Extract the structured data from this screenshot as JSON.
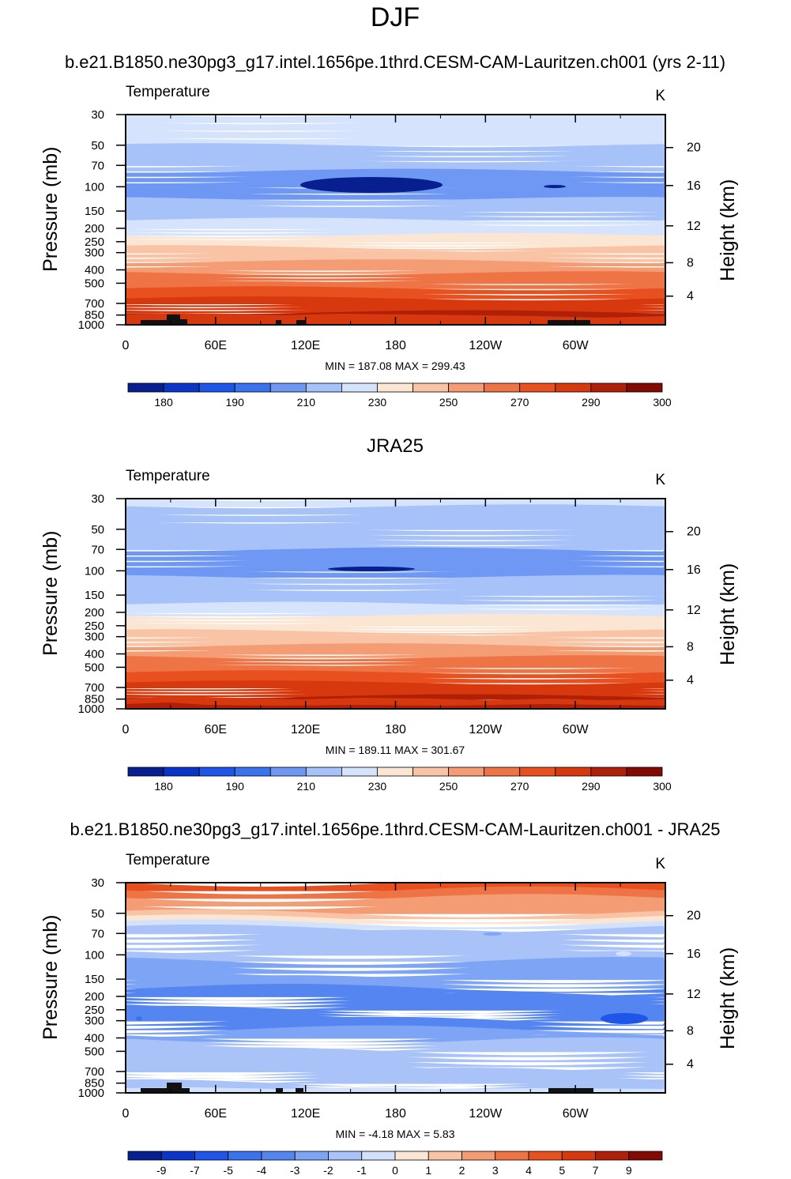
{
  "figure_title": "DJF",
  "panel_titles": [
    "b.e21.B1850.ne30pg3_g17.intel.1656pe.1thrd.CESM-CAM-Lauritzen.ch001 (yrs 2-11)",
    "JRA25",
    "b.e21.B1850.ne30pg3_g17.intel.1656pe.1thrd.CESM-CAM-Lauritzen.ch001 - JRA25"
  ],
  "common": {
    "variable": "Temperature",
    "units": "K",
    "y_label_left": "Pressure (mb)",
    "y_label_right": "Height (km)"
  },
  "colors": {
    "abs_scale": [
      "#08208f",
      "#0a35c8",
      "#1f55e8",
      "#3a73ee",
      "#6f98f4",
      "#a7c2f9",
      "#d5e4fc",
      "#fbe6d4",
      "#f8c4a5",
      "#f49d75",
      "#ee7446",
      "#e9501f",
      "#d8380d",
      "#b02008",
      "#820a05"
    ],
    "diff_scale": [
      "#08208f",
      "#0a35c8",
      "#1f55e8",
      "#3a73ee",
      "#5585f1",
      "#7ea4f5",
      "#a9c3f9",
      "#d3e2fc",
      "#fbe6d4",
      "#f8c4a5",
      "#f49d75",
      "#ee7446",
      "#e9501f",
      "#d8380d",
      "#b02008",
      "#820a05"
    ],
    "land": "#111111"
  },
  "chart_data": [
    {
      "type": "heatmap",
      "panel": "model",
      "title": "b.e21.B1850.ne30pg3_g17.intel.1656pe.1thrd.CESM-CAM-Lauritzen.ch001 (yrs 2-11)",
      "left_label": "Temperature",
      "right_label": "K",
      "xlabel": "",
      "ylabel": "Pressure (mb)",
      "ylabel_right": "Height (km)",
      "x_ticks": [
        "0",
        "60E",
        "120E",
        "180",
        "120W",
        "60W"
      ],
      "x_tick_lons": [
        0,
        60,
        120,
        180,
        240,
        300
      ],
      "y_ticks": [
        "30",
        "50",
        "70",
        "100",
        "150",
        "200",
        "250",
        "300",
        "400",
        "500",
        "700",
        "850",
        "1000"
      ],
      "y_tick_values": [
        30,
        50,
        70,
        100,
        150,
        200,
        250,
        300,
        400,
        500,
        700,
        850,
        1000
      ],
      "height_ticks": [
        "20",
        "16",
        "12",
        "8",
        "4"
      ],
      "height_tick_values": [
        20,
        16,
        12,
        8,
        4
      ],
      "plev": [
        30,
        50,
        70,
        100,
        150,
        200,
        250,
        300,
        400,
        500,
        700,
        850,
        1000
      ],
      "zonal_mean_temperature": [
        215,
        210,
        202,
        196,
        205,
        216,
        225,
        233,
        246,
        257,
        272,
        282,
        290
      ],
      "min_max_text": "MIN = 187.08  MAX = 299.43",
      "min": 187.08,
      "max": 299.43,
      "colorbar_labels": [
        "180",
        "190",
        "210",
        "230",
        "250",
        "270",
        "290",
        "300"
      ],
      "colorbar_levels": [
        175,
        180,
        185,
        190,
        200,
        210,
        220,
        230,
        240,
        250,
        260,
        270,
        280,
        290,
        300
      ]
    },
    {
      "type": "heatmap",
      "panel": "observations",
      "title": "JRA25",
      "left_label": "Temperature",
      "right_label": "K",
      "xlabel": "",
      "ylabel": "Pressure (mb)",
      "ylabel_right": "Height (km)",
      "x_ticks": [
        "0",
        "60E",
        "120E",
        "180",
        "120W",
        "60W"
      ],
      "x_tick_lons": [
        0,
        60,
        120,
        180,
        240,
        300
      ],
      "y_ticks": [
        "30",
        "50",
        "70",
        "100",
        "150",
        "200",
        "250",
        "300",
        "400",
        "500",
        "700",
        "850",
        "1000"
      ],
      "y_tick_values": [
        30,
        50,
        70,
        100,
        150,
        200,
        250,
        300,
        400,
        500,
        700,
        850,
        1000
      ],
      "height_ticks": [
        "20",
        "16",
        "12",
        "8",
        "4"
      ],
      "height_tick_values": [
        20,
        16,
        12,
        8,
        4
      ],
      "plev": [
        30,
        50,
        70,
        100,
        150,
        200,
        250,
        300,
        400,
        500,
        700,
        850,
        1000
      ],
      "zonal_mean_temperature": [
        211,
        207,
        200,
        197,
        205,
        217,
        226,
        234,
        247,
        258,
        273,
        283,
        292
      ],
      "min_max_text": "MIN = 189.11  MAX = 301.67",
      "min": 189.11,
      "max": 301.67,
      "colorbar_labels": [
        "180",
        "190",
        "210",
        "230",
        "250",
        "270",
        "290",
        "300"
      ],
      "colorbar_levels": [
        175,
        180,
        185,
        190,
        200,
        210,
        220,
        230,
        240,
        250,
        260,
        270,
        280,
        290,
        300
      ]
    },
    {
      "type": "heatmap",
      "panel": "difference",
      "title": "b.e21.B1850.ne30pg3_g17.intel.1656pe.1thrd.CESM-CAM-Lauritzen.ch001 - JRA25",
      "left_label": "Temperature",
      "right_label": "K",
      "xlabel": "",
      "ylabel": "Pressure (mb)",
      "ylabel_right": "Height (km)",
      "x_ticks": [
        "0",
        "60E",
        "120E",
        "180",
        "120W",
        "60W"
      ],
      "x_tick_lons": [
        0,
        60,
        120,
        180,
        240,
        300
      ],
      "y_ticks": [
        "30",
        "50",
        "70",
        "100",
        "150",
        "200",
        "250",
        "300",
        "400",
        "500",
        "700",
        "850",
        "1000"
      ],
      "y_tick_values": [
        30,
        50,
        70,
        100,
        150,
        200,
        250,
        300,
        400,
        500,
        700,
        850,
        1000
      ],
      "height_ticks": [
        "20",
        "16",
        "12",
        "8",
        "4"
      ],
      "height_tick_values": [
        20,
        16,
        12,
        8,
        4
      ],
      "plev": [
        30,
        50,
        70,
        100,
        150,
        200,
        250,
        300,
        400,
        500,
        700,
        850,
        1000
      ],
      "zonal_mean_difference": [
        4.5,
        2.0,
        -1.8,
        -1.6,
        -2.8,
        -3.3,
        -3.4,
        -3.5,
        -2.3,
        -1.5,
        -1.8,
        -1.6,
        -1.2
      ],
      "min_max_text": "MIN =  -4.18  MAX =   5.83",
      "min": -4.18,
      "max": 5.83,
      "colorbar_labels": [
        "-9",
        "-7",
        "-5",
        "-4",
        "-3",
        "-2",
        "-1",
        "0",
        "1",
        "2",
        "3",
        "4",
        "5",
        "7",
        "9"
      ],
      "colorbar_levels": [
        -9,
        -7,
        -5,
        -4,
        -3,
        -2,
        -1,
        0,
        1,
        2,
        3,
        4,
        5,
        7,
        9
      ]
    }
  ]
}
